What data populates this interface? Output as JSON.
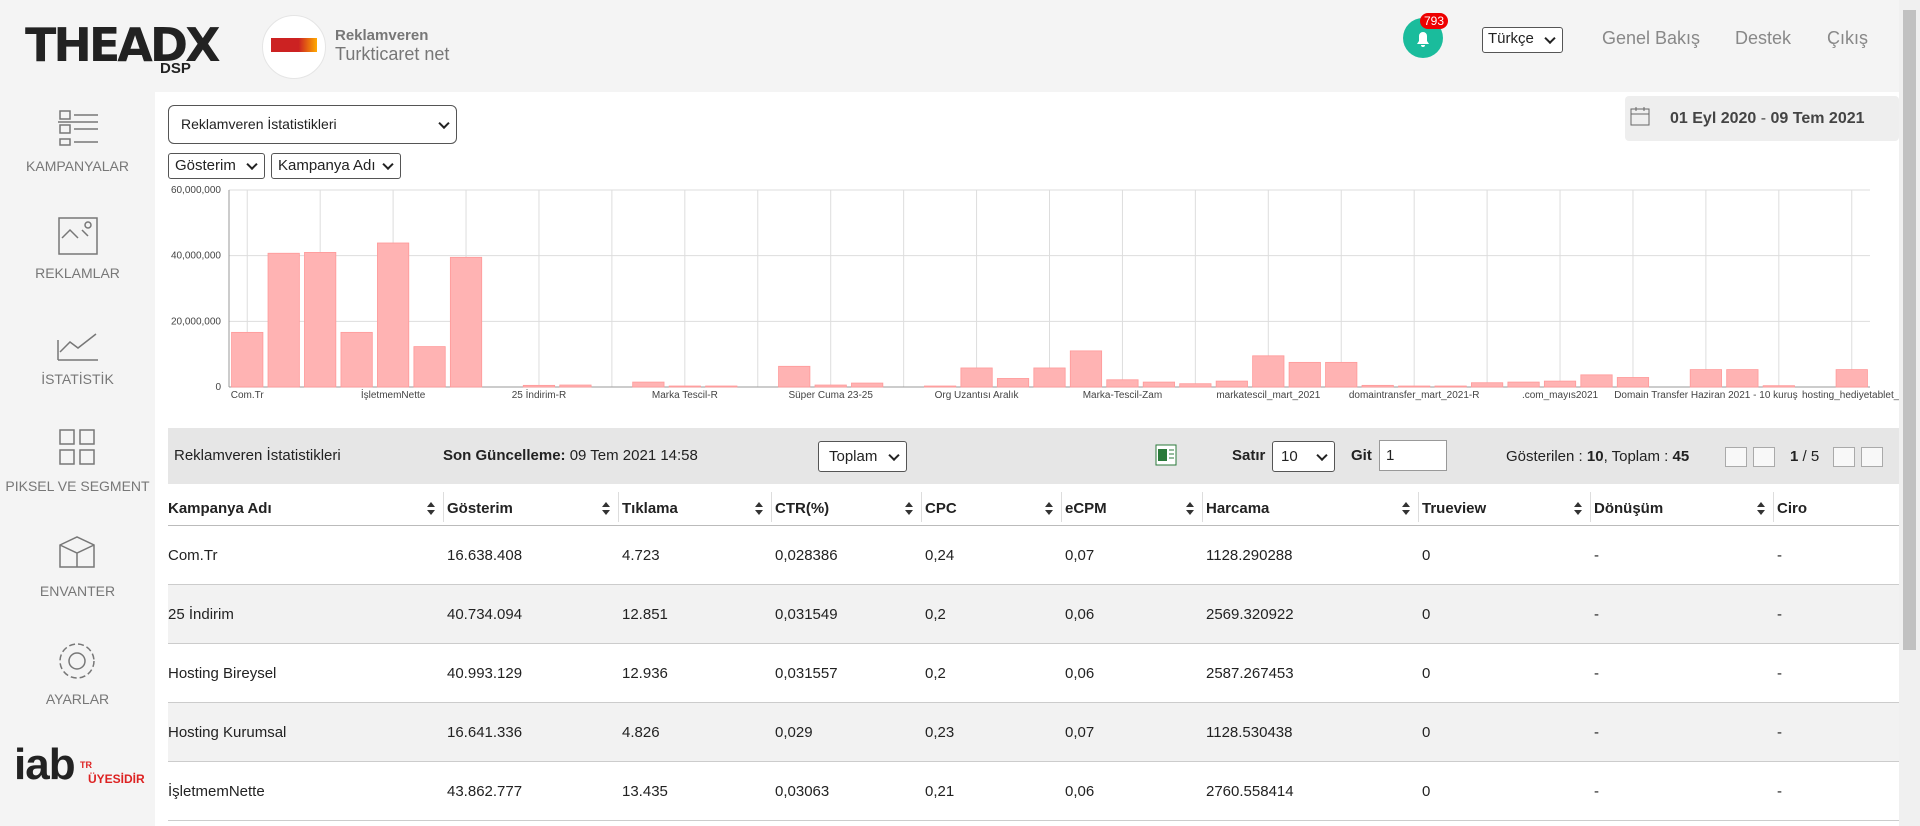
{
  "header": {
    "logo": "THEADX",
    "logo_sub": "DSP",
    "advertiser_label": "Reklamveren",
    "advertiser_name": "Turkticaret net",
    "notifications": "793",
    "language": "Türkçe",
    "nav": [
      "Genel Bakış",
      "Destek",
      "Çıkış"
    ]
  },
  "sidebar": {
    "items": [
      "KAMPANYALAR",
      "REKLAMLAR",
      "İSTATİSTİK",
      "PIKSEL VE SEGMENT",
      "ENVANTER",
      "AYARLAR"
    ],
    "iab": "iab",
    "iab_tr": "TR",
    "iab_member": "ÜYESİDİR"
  },
  "filters": {
    "report": "Reklamveren İstatistikleri",
    "metric": "Gösterim",
    "group": "Kampanya Adı",
    "date_start": "01 Eyl 2020",
    "date_sep": "-",
    "date_end": "09 Tem 2021"
  },
  "chart_data": {
    "type": "bar",
    "categories": [
      "Com.Tr",
      null,
      null,
      null,
      "İşletmemNette",
      null,
      null,
      null,
      "25 İndirim-R",
      null,
      null,
      null,
      "Marka Tescil-R",
      null,
      null,
      null,
      "Süper Cuma 23-25",
      null,
      null,
      null,
      "Org Uzantısı Aralık",
      null,
      null,
      null,
      "Marka-Tescil-Zam",
      null,
      null,
      null,
      "markatescil_mart_2021",
      null,
      null,
      null,
      "domaintransfer_mart_2021-R",
      null,
      null,
      null,
      ".com_mayıs2021",
      null,
      null,
      null,
      "Domain Transfer Haziran 2021 - 10 kuruş",
      null,
      null,
      null,
      "hosting_hediyetablet_l"
    ],
    "values": [
      16638408,
      40734094,
      40993129,
      16641336,
      43862777,
      12300000,
      39500000,
      0,
      500000,
      600000,
      0,
      1500000,
      300000,
      300000,
      0,
      6300000,
      600000,
      1200000,
      0,
      300000,
      5800000,
      2600000,
      5800000,
      11000000,
      2200000,
      1500000,
      1000000,
      1800000,
      9500000,
      7500000,
      7500000,
      500000,
      300000,
      300000,
      1300000,
      1500000,
      1800000,
      3700000,
      2900000,
      0,
      5300000,
      5300000,
      400000,
      0,
      5300000
    ],
    "color": "#ffb3b3",
    "ylim": [
      0,
      60000000
    ],
    "yticks": [
      0,
      {
        "value": 20000000,
        "label": "20,000,000"
      },
      {
        "value": 40000000,
        "label": "40,000,000"
      },
      {
        "value": 60000000,
        "label": "60,000,000"
      }
    ],
    "grid": true
  },
  "table": {
    "title": "Reklamveren İstatistikleri",
    "updated_label": "Son Güncelleme:",
    "updated": "09 Tem 2021 14:58",
    "aggregate": "Toplam",
    "rows_label": "Satır",
    "rows_per_page": "10",
    "goto_label": "Git",
    "goto_page": "1",
    "shown_label": "Gösterilen :",
    "shown": "10",
    "total_label": ", Toplam :",
    "total": "45",
    "page": "1",
    "page_sep": "/",
    "pages": "5",
    "columns": [
      "Kampanya Adı",
      "Gösterim",
      "Tıklama",
      "CTR(%)",
      "CPC",
      "eCPM",
      "Harcama",
      "Trueview",
      "Dönüşüm",
      "Ciro"
    ],
    "rows": [
      [
        "Com.Tr",
        "16.638.408",
        "4.723",
        "0,028386",
        "0,24",
        "0,07",
        "1128.290288",
        "0",
        "-",
        "-"
      ],
      [
        "25 İndirim",
        "40.734.094",
        "12.851",
        "0,031549",
        "0,2",
        "0,06",
        "2569.320922",
        "0",
        "-",
        "-"
      ],
      [
        "Hosting Bireysel",
        "40.993.129",
        "12.936",
        "0,031557",
        "0,2",
        "0,06",
        "2587.267453",
        "0",
        "-",
        "-"
      ],
      [
        "Hosting Kurumsal",
        "16.641.336",
        "4.826",
        "0,029",
        "0,23",
        "0,07",
        "1128.530438",
        "0",
        "-",
        "-"
      ],
      [
        "İşletmemNette",
        "43.862.777",
        "13.435",
        "0,03063",
        "0,21",
        "0,06",
        "2760.558414",
        "0",
        "-",
        "-"
      ]
    ]
  }
}
